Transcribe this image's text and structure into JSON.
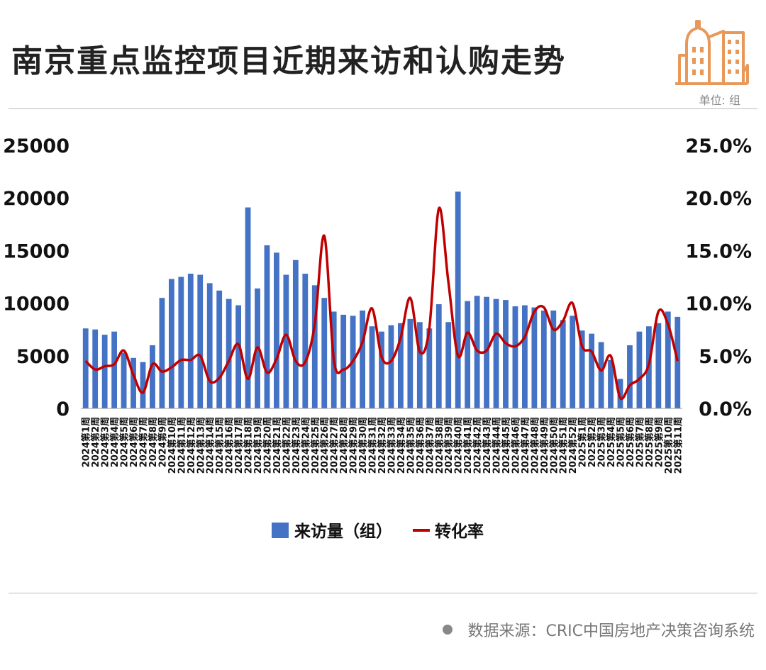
{
  "header": {
    "title": "南京重点监控项目近期来访和认购走势",
    "unit": "单位: 组"
  },
  "footer": {
    "source": "数据来源：CRIC中国房地产决策咨询系统"
  },
  "colors": {
    "bar": "#4472c4",
    "line": "#c00000",
    "logo": "#e8995a"
  },
  "chart_data": {
    "type": "bar",
    "left_axis": {
      "ticks": [
        "0",
        "5000",
        "10000",
        "15000",
        "20000",
        "25000"
      ],
      "min": 0,
      "max": 25000
    },
    "right_axis": {
      "ticks": [
        "0.0%",
        "5.0%",
        "10.0%",
        "15.0%",
        "20.0%",
        "25.0%"
      ],
      "min": 0,
      "max": 25
    },
    "categories": [
      "2024第1周",
      "2024第2周",
      "2024第3周",
      "2024第4周",
      "2024第5周",
      "2024第6周",
      "2024第7周",
      "2024第8周",
      "2024第9周",
      "2024第10周",
      "2024第11周",
      "2024第12周",
      "2024第13周",
      "2024第14周",
      "2024第15周",
      "2024第16周",
      "2024第17周",
      "2024第18周",
      "2024第19周",
      "2024第20周",
      "2024第21周",
      "2024第22周",
      "2024第23周",
      "2024第24周",
      "2024第25周",
      "2024第26周",
      "2024第27周",
      "2024第28周",
      "2024第29周",
      "2024第30周",
      "2024第31周",
      "2024第32周",
      "2024第33周",
      "2024第34周",
      "2024第35周",
      "2024第36周",
      "2024第37周",
      "2024第38周",
      "2024第39周",
      "2024第40周",
      "2024第41周",
      "2024第42周",
      "2024第43周",
      "2024第44周",
      "2024第45周",
      "2024第46周",
      "2024第47周",
      "2024第48周",
      "2024第49周",
      "2024第50周",
      "2024第51周",
      "2024第52周",
      "2025第1周",
      "2025第2周",
      "2025第3周",
      "2025第4周",
      "2025第5周",
      "2025第6周",
      "2025第7周",
      "2025第8周",
      "2025第9周",
      "2025第10周",
      "2025第11周"
    ],
    "series": [
      {
        "name": "来访量（组）",
        "type": "bar",
        "axis": "left",
        "values": [
          7600,
          7500,
          7000,
          7300,
          5300,
          4800,
          4400,
          6000,
          10500,
          12300,
          12500,
          12800,
          12700,
          11900,
          11200,
          10400,
          9800,
          19100,
          11400,
          15500,
          14800,
          12700,
          14100,
          12800,
          11700,
          10500,
          9200,
          8900,
          8800,
          9300,
          7800,
          7300,
          7900,
          8100,
          8500,
          8200,
          7600,
          9900,
          8200,
          20600,
          10200,
          10700,
          10600,
          10400,
          10300,
          9700,
          9800,
          9600,
          9300,
          9300,
          8400,
          8800,
          7400,
          7100,
          6300,
          4600,
          2800,
          6000,
          7300,
          7800,
          8100,
          9200,
          8700
        ]
      },
      {
        "name": "转化率",
        "type": "line",
        "axis": "right",
        "values": [
          4.5,
          3.7,
          4.0,
          4.2,
          5.5,
          3.2,
          1.5,
          4.2,
          3.5,
          3.9,
          4.6,
          4.6,
          5.0,
          2.6,
          2.9,
          4.5,
          6.1,
          2.8,
          5.8,
          3.4,
          4.7,
          7.0,
          4.5,
          4.4,
          8.0,
          16.4,
          4.6,
          3.7,
          4.5,
          6.3,
          9.5,
          4.9,
          4.5,
          6.7,
          10.5,
          5.4,
          7.6,
          19.0,
          12.0,
          5.0,
          7.2,
          5.5,
          5.5,
          7.1,
          6.2,
          5.9,
          6.8,
          9.2,
          9.6,
          7.5,
          8.3,
          10.0,
          5.9,
          5.4,
          3.6,
          5.0,
          1.0,
          2.2,
          2.8,
          4.2,
          9.2,
          8.0,
          4.5
        ]
      }
    ],
    "legend": {
      "position": "bottom-center"
    }
  }
}
